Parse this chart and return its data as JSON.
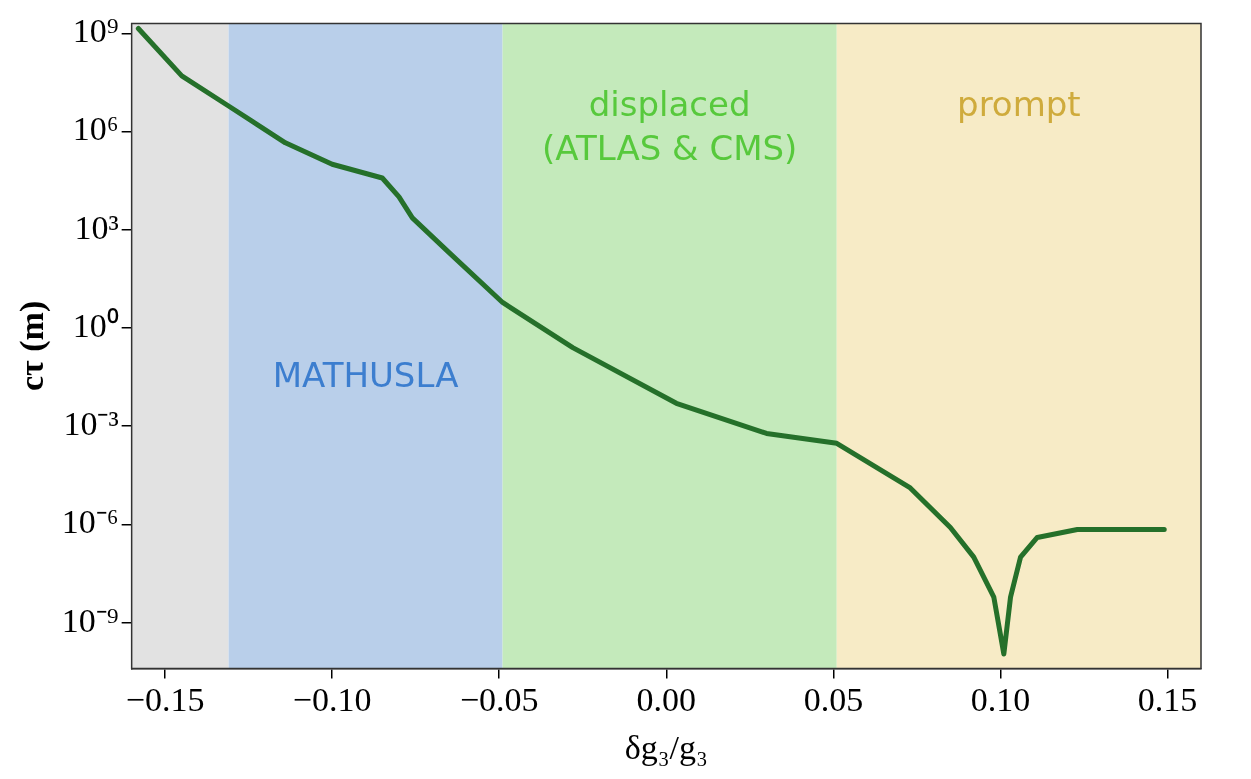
{
  "chart_data": {
    "type": "line",
    "xlabel": "δg₃/g₃",
    "ylabel": "cτ (m)",
    "log": "y",
    "grid": false,
    "legend": false,
    "marker": "none",
    "line_style": "solid",
    "xlim": [
      -0.16,
      0.16
    ],
    "ylim": [
      4e-11,
      2000000000.0
    ],
    "xticks": [
      {
        "value": -0.15,
        "label": "−0.15"
      },
      {
        "value": -0.1,
        "label": "−0.10"
      },
      {
        "value": -0.05,
        "label": "−0.05"
      },
      {
        "value": 0,
        "label": "0.00"
      },
      {
        "value": 0.05,
        "label": "0.05"
      },
      {
        "value": 0.1,
        "label": "0.10"
      },
      {
        "value": 0.15,
        "label": "0.15"
      }
    ],
    "yticks": [
      {
        "value": 1e-09,
        "label": "10⁻⁹"
      },
      {
        "value": 1e-06,
        "label": "10⁻⁶"
      },
      {
        "value": 0.001,
        "label": "10⁻³"
      },
      {
        "value": 1,
        "label": "10⁰"
      },
      {
        "value": 1000.0,
        "label": "10³"
      },
      {
        "value": 1000000.0,
        "label": "10⁶"
      },
      {
        "value": 1000000000.0,
        "label": "10⁹"
      }
    ],
    "bands": [
      {
        "axis": "x",
        "from": -0.16,
        "to": -0.131,
        "color": "#e2e2e2"
      },
      {
        "axis": "x",
        "from": -0.131,
        "to": -0.049,
        "label": "MATHUSLA",
        "color": "#b9cfea"
      },
      {
        "axis": "x",
        "from": -0.049,
        "to": 0.051,
        "label": "displaced\n(ATLAS & CMS)",
        "color": "#c4eabb"
      },
      {
        "axis": "x",
        "from": 0.051,
        "to": 0.16,
        "label": "prompt",
        "color": "#f7ebc6"
      }
    ],
    "series": [
      {
        "color": "#25702a",
        "x": [
          -0.158,
          -0.145,
          -0.131,
          -0.114,
          -0.1,
          -0.085,
          -0.08,
          -0.076,
          -0.065,
          -0.049,
          -0.028,
          0.003,
          0.03,
          0.051,
          0.073,
          0.085,
          0.092,
          0.098,
          0.101,
          0.103,
          0.106,
          0.111,
          0.123,
          0.149
        ],
        "values": [
          1400000000.0,
          50000000.0,
          6000000.0,
          450000.0,
          100000.0,
          38000.0,
          10000.0,
          2300.0,
          200.0,
          6,
          0.25,
          0.005,
          0.0006,
          0.0003,
          1.3e-05,
          8e-07,
          1e-07,
          6e-09,
          1.1e-10,
          6e-09,
          1e-07,
          4e-07,
          7e-07,
          7e-07
        ]
      }
    ]
  }
}
